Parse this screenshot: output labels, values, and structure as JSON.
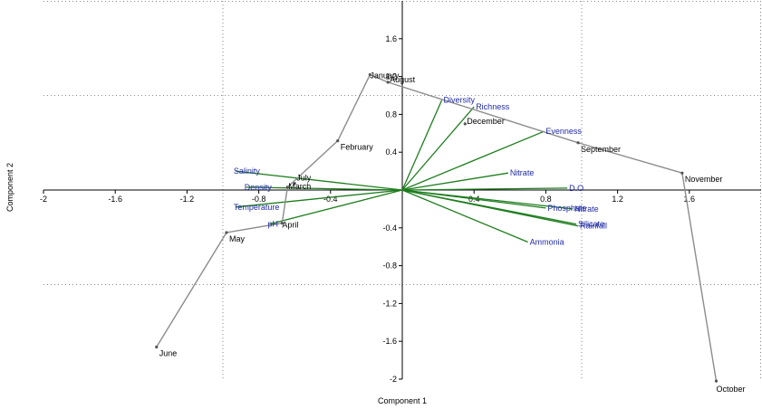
{
  "chart_data": {
    "type": "scatter",
    "title": "",
    "xlabel": "Component 1",
    "ylabel": "Component 2",
    "xlim": [
      -2,
      2
    ],
    "ylim": [
      -2,
      2
    ],
    "x_ticks": [
      "-2",
      "-1.6",
      "-1.2",
      "-0.8",
      "-0.4",
      "0.4",
      "0.8",
      "1.2",
      "1.6"
    ],
    "y_ticks": [
      "1.6",
      "1.2",
      "0.8",
      "0.4",
      "-0.4",
      "-0.8",
      "-1.2",
      "-1.6",
      "-2"
    ],
    "grid": "dotted",
    "colors": {
      "path": "#8c8c8c",
      "vectors": "#1e7d1e",
      "variable_labels": "#1f2aa8",
      "month_labels": "#000000"
    },
    "series": [
      {
        "name": "",
        "kind": "monthly path",
        "points": [
          {
            "label": "June",
            "x": -1.37,
            "y": -1.66
          },
          {
            "label": "May",
            "x": -0.98,
            "y": -0.45
          },
          {
            "label": "April",
            "x": -0.67,
            "y": -0.35
          },
          {
            "label": "March",
            "x": -0.64,
            "y": 0.03
          },
          {
            "label": "February",
            "x": -0.36,
            "y": 0.52
          },
          {
            "label": "January",
            "x": -0.18,
            "y": 1.22
          },
          {
            "label": "August",
            "x": -0.08,
            "y": 1.14
          },
          {
            "label": "September",
            "x": 0.98,
            "y": 0.5
          },
          {
            "label": "November",
            "x": 1.56,
            "y": 0.18
          },
          {
            "label": "October",
            "x": 1.75,
            "y": -2.02
          },
          {
            "label": "July",
            "x": -0.6,
            "y": 0.07
          },
          {
            "label": "December",
            "x": 0.35,
            "y": 0.7
          }
        ]
      },
      {
        "name": "",
        "kind": "loading vectors",
        "points": [
          {
            "label": "Diversity",
            "x": 0.22,
            "y": 0.95
          },
          {
            "label": "Richness",
            "x": 0.4,
            "y": 0.88
          },
          {
            "label": "Evenness",
            "x": 0.79,
            "y": 0.62
          },
          {
            "label": "Nitrate",
            "x": 0.59,
            "y": 0.18
          },
          {
            "label": "D.O",
            "x": 0.92,
            "y": 0.02
          },
          {
            "label": "Phosphate",
            "x": 0.8,
            "y": -0.19
          },
          {
            "label": "Nitrate",
            "x": 0.95,
            "y": -0.2
          },
          {
            "label": "Silicate",
            "x": 0.97,
            "y": -0.36
          },
          {
            "label": "Rainfall",
            "x": 0.98,
            "y": -0.38
          },
          {
            "label": "Ammonia",
            "x": 0.7,
            "y": -0.55
          },
          {
            "label": "Salinity",
            "x": -0.93,
            "y": 0.2
          },
          {
            "label": "Density",
            "x": -0.87,
            "y": 0.03
          },
          {
            "label": "Temperature",
            "x": -0.93,
            "y": -0.18
          },
          {
            "label": "pH",
            "x": -0.74,
            "y": -0.36
          }
        ]
      }
    ]
  }
}
